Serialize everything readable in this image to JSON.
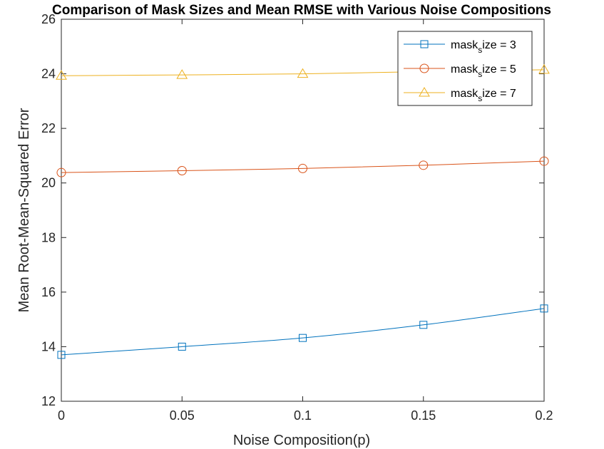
{
  "chart_data": {
    "type": "line",
    "title": "Comparison of Mask Sizes and Mean RMSE with Various Noise Compositions",
    "xlabel": "Noise Composition(p)",
    "ylabel": "Mean Root-Mean-Squared Error",
    "xlim": [
      0,
      0.2
    ],
    "ylim": [
      12,
      26
    ],
    "xticks": [
      "0",
      "0.05",
      "0.1",
      "0.15",
      "0.2"
    ],
    "yticks": [
      "12",
      "14",
      "16",
      "18",
      "20",
      "22",
      "24",
      "26"
    ],
    "x": [
      0,
      0.05,
      0.1,
      0.15,
      0.2
    ],
    "legend_position": "top-right",
    "grid": false,
    "series": [
      {
        "legend_main": "mask",
        "legend_sub": "s",
        "legend_rest": "ize = 3",
        "marker": "square",
        "color": "#0072BD",
        "values": [
          13.7,
          14.0,
          14.32,
          14.8,
          15.4
        ]
      },
      {
        "legend_main": "mask",
        "legend_sub": "s",
        "legend_rest": "ize = 5",
        "marker": "circle",
        "color": "#D95319",
        "values": [
          20.38,
          20.45,
          20.53,
          20.65,
          20.8
        ]
      },
      {
        "legend_main": "mask",
        "legend_sub": "s",
        "legend_rest": "ize = 7",
        "marker": "triangle",
        "color": "#EDB120",
        "values": [
          23.93,
          23.96,
          24.0,
          24.08,
          24.15
        ]
      }
    ]
  }
}
